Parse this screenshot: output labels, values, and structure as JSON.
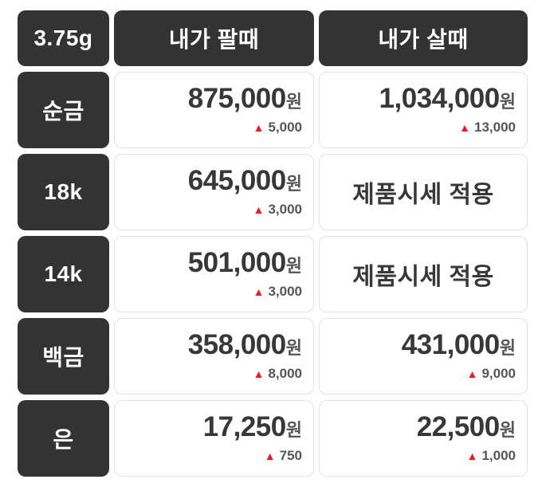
{
  "colors": {
    "cell_dark_bg": "#333333",
    "cell_light_border": "#e3e3e3",
    "price_text": "#383838",
    "secondary_text": "#555555",
    "up_triangle_red": "#ed1c24"
  },
  "icons": {
    "up_triangle": "▲"
  },
  "currency": {
    "suffix": "원"
  },
  "header": {
    "unit_label": "3.75g",
    "col_sell": "내가 팔때",
    "col_buy": "내가 살때"
  },
  "rows": [
    {
      "label": "순금",
      "sell": {
        "price": "875,000",
        "change": "5,000",
        "direction": "up"
      },
      "buy": {
        "price": "1,034,000",
        "change": "13,000",
        "direction": "up"
      }
    },
    {
      "label": "18k",
      "sell": {
        "price": "645,000",
        "change": "3,000",
        "direction": "up"
      },
      "buy": {
        "notice": "제품시세 적용"
      }
    },
    {
      "label": "14k",
      "sell": {
        "price": "501,000",
        "change": "3,000",
        "direction": "up"
      },
      "buy": {
        "notice": "제품시세 적용"
      }
    },
    {
      "label": "백금",
      "sell": {
        "price": "358,000",
        "change": "8,000",
        "direction": "up"
      },
      "buy": {
        "price": "431,000",
        "change": "9,000",
        "direction": "up"
      }
    },
    {
      "label": "은",
      "sell": {
        "price": "17,250",
        "change": "750",
        "direction": "up"
      },
      "buy": {
        "price": "22,500",
        "change": "1,000",
        "direction": "up"
      }
    }
  ]
}
